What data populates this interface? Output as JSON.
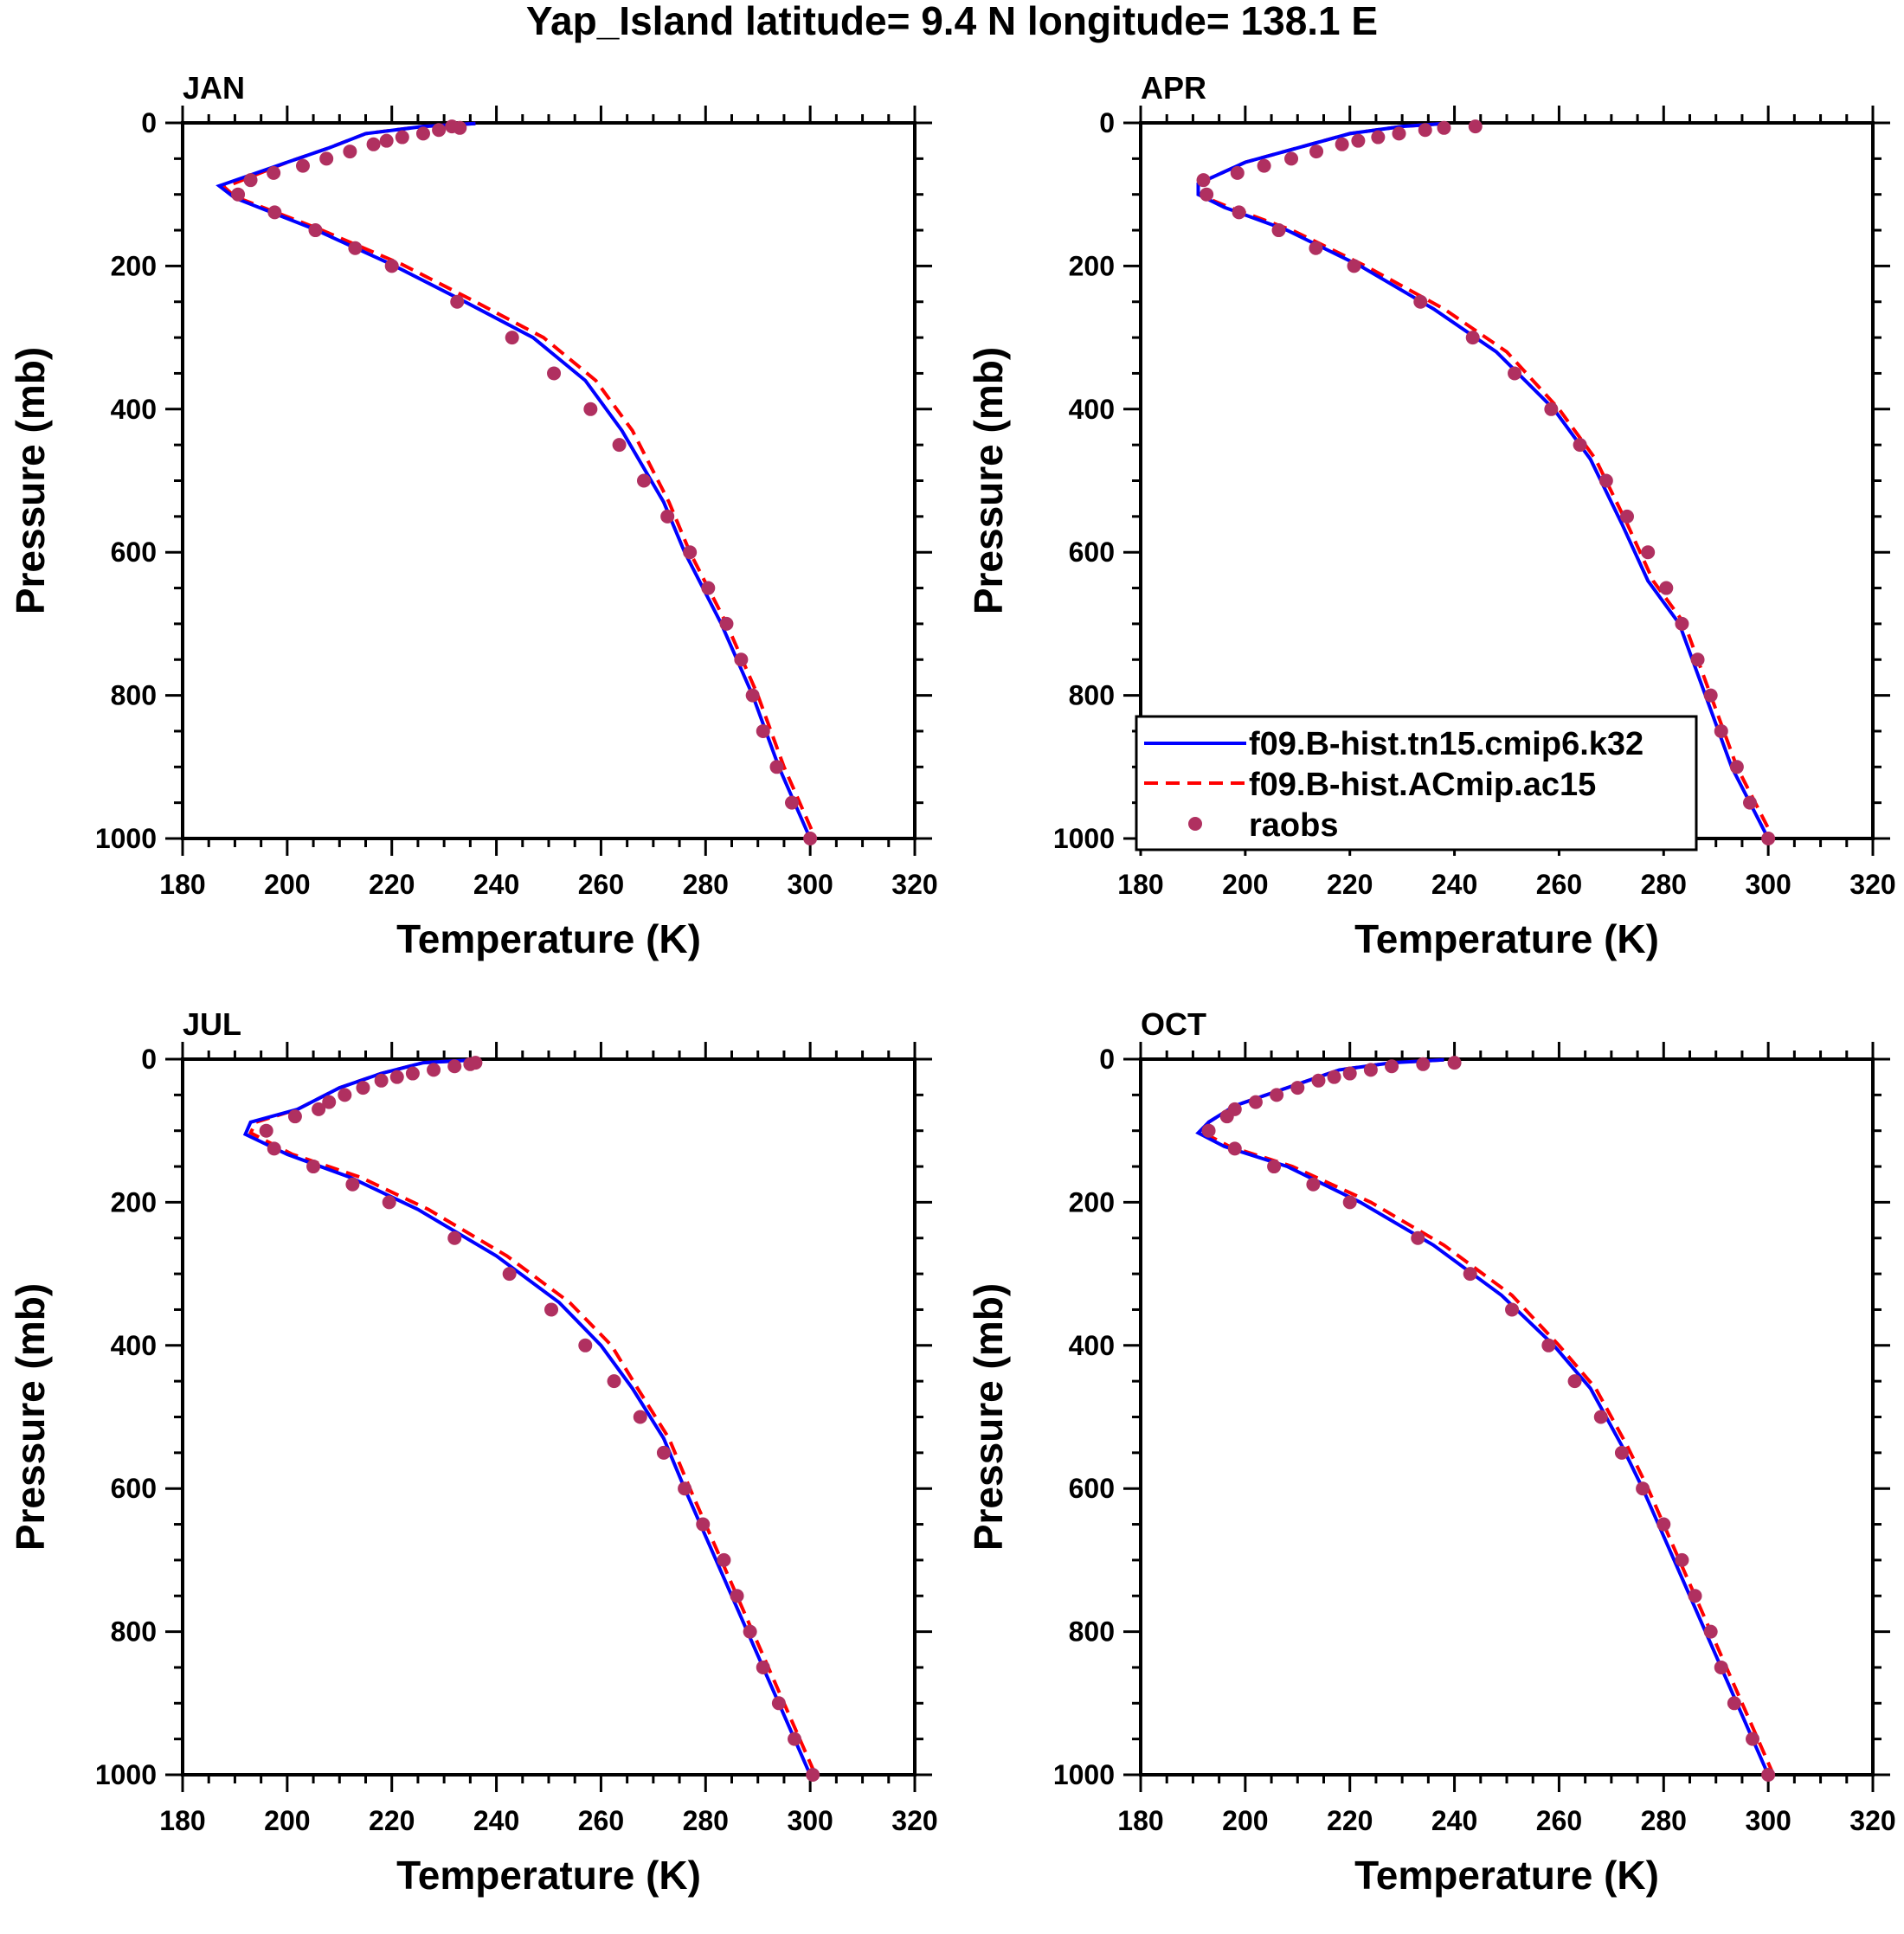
{
  "title": "Yap_Island  latitude= 9.4 N longitude= 138.1 E",
  "chart_data": {
    "type": "line",
    "title": "Yap_Island  latitude= 9.4 N longitude= 138.1 E",
    "xlabel": "Temperature (K)",
    "ylabel": "Pressure (mb)",
    "xlim": [
      180,
      320
    ],
    "ylim": [
      1000,
      0
    ],
    "xticks": [
      "180",
      "200",
      "220",
      "240",
      "260",
      "280",
      "300",
      "320"
    ],
    "yticks": [
      "0",
      "200",
      "400",
      "600",
      "800",
      "1000"
    ],
    "legend": {
      "placement": "inside APR panel, lower-left",
      "entries": [
        "f09.B-hist.tn15.cmip6.k32",
        "f09.B-hist.ACmip.ac15",
        "raobs"
      ]
    },
    "colors": {
      "model1": "#0000ff",
      "model2": "#ff0000",
      "raobs": "#b03060"
    },
    "raobs_pressure": [
      1000,
      950,
      900,
      850,
      800,
      750,
      700,
      650,
      600,
      550,
      500,
      450,
      400,
      350,
      300,
      250,
      200,
      175,
      150,
      125,
      100,
      80,
      70,
      60,
      50,
      40,
      30,
      25,
      20,
      15,
      10,
      7,
      5
    ],
    "panels": [
      {
        "label": "JAN",
        "raobs_T": [
          300,
          296.5,
          293.6,
          291,
          289,
          286.8,
          284,
          280.5,
          277,
          272.7,
          268.2,
          263.5,
          258,
          251,
          243,
          232.5,
          220,
          213,
          205.4,
          197.6,
          190.6,
          193,
          197.4,
          203,
          207.5,
          212,
          216.5,
          219,
          222,
          226,
          229,
          233,
          231.5
        ],
        "model1": [
          [
            236,
            1
          ],
          [
            226,
            5
          ],
          [
            215,
            15
          ],
          [
            208,
            35
          ],
          [
            200,
            55
          ],
          [
            187,
            88
          ],
          [
            190,
            105
          ],
          [
            205,
            148
          ],
          [
            220,
            198
          ],
          [
            234,
            250
          ],
          [
            247,
            300
          ],
          [
            257,
            360
          ],
          [
            264,
            430
          ],
          [
            272,
            530
          ],
          [
            276,
            600
          ],
          [
            283,
            700
          ],
          [
            289,
            800
          ],
          [
            294,
            900
          ],
          [
            300,
            1000
          ]
        ],
        "model2": [
          [
            236,
            1
          ],
          [
            226,
            5
          ],
          [
            215,
            15
          ],
          [
            208,
            35
          ],
          [
            200,
            55
          ],
          [
            188,
            90
          ],
          [
            190,
            103
          ],
          [
            206,
            148
          ],
          [
            222,
            198
          ],
          [
            236,
            250
          ],
          [
            249,
            300
          ],
          [
            259,
            360
          ],
          [
            266,
            430
          ],
          [
            273,
            530
          ],
          [
            277,
            600
          ],
          [
            284,
            700
          ],
          [
            290,
            800
          ],
          [
            295,
            900
          ],
          [
            301,
            1000
          ]
        ]
      },
      {
        "label": "APR",
        "raobs_T": [
          300,
          296.5,
          294,
          291,
          289,
          286.5,
          283.5,
          280.5,
          277,
          273,
          269,
          264,
          258.5,
          251.5,
          243.5,
          233.5,
          220.8,
          213.5,
          206.4,
          198.8,
          192.6,
          192,
          198.5,
          203.6,
          208.8,
          213.6,
          218.5,
          221.6,
          225.4,
          229.4,
          234.4,
          238,
          244
        ],
        "model1": [
          [
            238,
            1
          ],
          [
            230,
            5
          ],
          [
            220,
            15
          ],
          [
            210,
            35
          ],
          [
            200,
            55
          ],
          [
            191,
            85
          ],
          [
            191,
            100
          ],
          [
            196,
            118
          ],
          [
            208,
            150
          ],
          [
            222,
            200
          ],
          [
            236,
            260
          ],
          [
            248,
            320
          ],
          [
            259,
            400
          ],
          [
            266,
            470
          ],
          [
            272,
            560
          ],
          [
            277,
            640
          ],
          [
            283,
            700
          ],
          [
            288,
            800
          ],
          [
            293,
            900
          ],
          [
            300,
            1000
          ]
        ],
        "model2": [
          [
            238,
            1
          ],
          [
            230,
            5
          ],
          [
            220,
            15
          ],
          [
            210,
            35
          ],
          [
            200,
            55
          ],
          [
            191,
            85
          ],
          [
            191,
            100
          ],
          [
            197,
            118
          ],
          [
            209,
            150
          ],
          [
            223,
            200
          ],
          [
            238,
            260
          ],
          [
            250,
            320
          ],
          [
            260,
            400
          ],
          [
            267,
            470
          ],
          [
            273,
            560
          ],
          [
            278,
            640
          ],
          [
            284,
            700
          ],
          [
            289,
            800
          ],
          [
            294,
            900
          ],
          [
            301,
            1000
          ]
        ]
      },
      {
        "label": "JUL",
        "raobs_T": [
          300.5,
          297,
          294,
          291,
          288.5,
          286,
          283.5,
          279.5,
          276,
          272,
          267.5,
          262.5,
          257,
          250.5,
          242.5,
          232,
          219.5,
          212.5,
          205,
          197.5,
          196,
          201.5,
          206,
          208,
          211,
          214.5,
          218,
          221,
          224,
          228,
          232,
          235,
          236
        ],
        "model1": [
          [
            236,
            1
          ],
          [
            226,
            5
          ],
          [
            218,
            20
          ],
          [
            210,
            40
          ],
          [
            202,
            70
          ],
          [
            193,
            88
          ],
          [
            192,
            105
          ],
          [
            200,
            133
          ],
          [
            212,
            165
          ],
          [
            225,
            210
          ],
          [
            240,
            275
          ],
          [
            252,
            340
          ],
          [
            260,
            400
          ],
          [
            266,
            460
          ],
          [
            272,
            530
          ],
          [
            276,
            600
          ],
          [
            282,
            700
          ],
          [
            288,
            800
          ],
          [
            294,
            900
          ],
          [
            300,
            1000
          ]
        ],
        "model2": [
          [
            236,
            1
          ],
          [
            226,
            5
          ],
          [
            218,
            20
          ],
          [
            210,
            40
          ],
          [
            202,
            70
          ],
          [
            194,
            88
          ],
          [
            193,
            103
          ],
          [
            201,
            133
          ],
          [
            214,
            165
          ],
          [
            227,
            210
          ],
          [
            242,
            275
          ],
          [
            254,
            340
          ],
          [
            262,
            400
          ],
          [
            267,
            460
          ],
          [
            273,
            530
          ],
          [
            277,
            600
          ],
          [
            283,
            700
          ],
          [
            289,
            800
          ],
          [
            295,
            900
          ],
          [
            301,
            1000
          ]
        ]
      },
      {
        "label": "OCT",
        "raobs_T": [
          300,
          297,
          293.5,
          291,
          289,
          286,
          283.5,
          280,
          276,
          272,
          268,
          263,
          258,
          251,
          243,
          233,
          220,
          213,
          205.5,
          198,
          193,
          196.5,
          198,
          202,
          206,
          210,
          214,
          217,
          220,
          224,
          228,
          234,
          240
        ],
        "model1": [
          [
            238,
            1
          ],
          [
            228,
            5
          ],
          [
            218,
            15
          ],
          [
            208,
            40
          ],
          [
            198,
            65
          ],
          [
            193,
            88
          ],
          [
            191,
            103
          ],
          [
            196,
            122
          ],
          [
            208,
            150
          ],
          [
            222,
            200
          ],
          [
            236,
            260
          ],
          [
            249,
            330
          ],
          [
            259,
            400
          ],
          [
            266,
            460
          ],
          [
            272,
            540
          ],
          [
            276,
            600
          ],
          [
            282,
            700
          ],
          [
            288,
            800
          ],
          [
            294,
            900
          ],
          [
            300,
            1000
          ]
        ],
        "model2": [
          [
            238,
            1
          ],
          [
            228,
            5
          ],
          [
            218,
            15
          ],
          [
            208,
            40
          ],
          [
            198,
            65
          ],
          [
            193,
            88
          ],
          [
            192,
            103
          ],
          [
            197,
            122
          ],
          [
            209,
            150
          ],
          [
            224,
            200
          ],
          [
            238,
            260
          ],
          [
            251,
            330
          ],
          [
            260,
            400
          ],
          [
            267,
            460
          ],
          [
            273,
            540
          ],
          [
            277,
            600
          ],
          [
            283,
            700
          ],
          [
            289,
            800
          ],
          [
            295,
            900
          ],
          [
            301,
            1000
          ]
        ]
      }
    ]
  }
}
